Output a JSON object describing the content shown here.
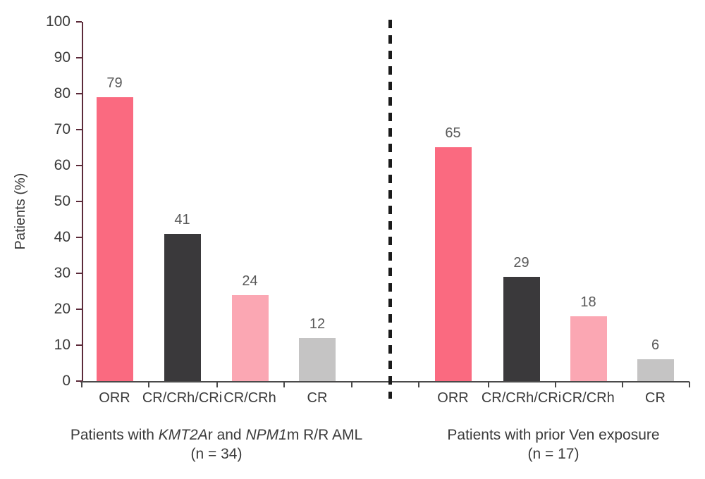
{
  "chart_data": {
    "type": "bar",
    "ylabel": "Patients (%)",
    "ylim": [
      0,
      100
    ],
    "yticks": [
      0,
      10,
      20,
      30,
      40,
      50,
      60,
      70,
      80,
      90,
      100
    ],
    "grid": false,
    "legend": "none",
    "categories": [
      "ORR",
      "CR/CRh/CRi",
      "CR/CRh",
      "CR"
    ],
    "bar_colors": [
      "#FA6A80",
      "#3A393B",
      "#FBA7B3",
      "#C5C4C4"
    ],
    "groups": [
      {
        "label_parts": [
          {
            "text": "Patients with ",
            "italic": false
          },
          {
            "text": "KMT2A",
            "italic": true
          },
          {
            "text": "r and ",
            "italic": false
          },
          {
            "text": "NPM1",
            "italic": true
          },
          {
            "text": "m R/R AML",
            "italic": false
          }
        ],
        "sublabel": "(n = 34)",
        "values": [
          79,
          41,
          24,
          12
        ]
      },
      {
        "label_parts": [
          {
            "text": "Patients with prior Ven exposure",
            "italic": false
          }
        ],
        "sublabel": "(n = 17)",
        "values": [
          65,
          29,
          18,
          6
        ]
      }
    ],
    "divider": {
      "style": "dashed",
      "color": "#1A1A1A"
    },
    "axis_colors": {
      "y_axis": "#5C2B3A",
      "x_axis": "#4A4A4A"
    },
    "value_label_color": "#595959",
    "tick_label_color": "#3A3A3A"
  }
}
